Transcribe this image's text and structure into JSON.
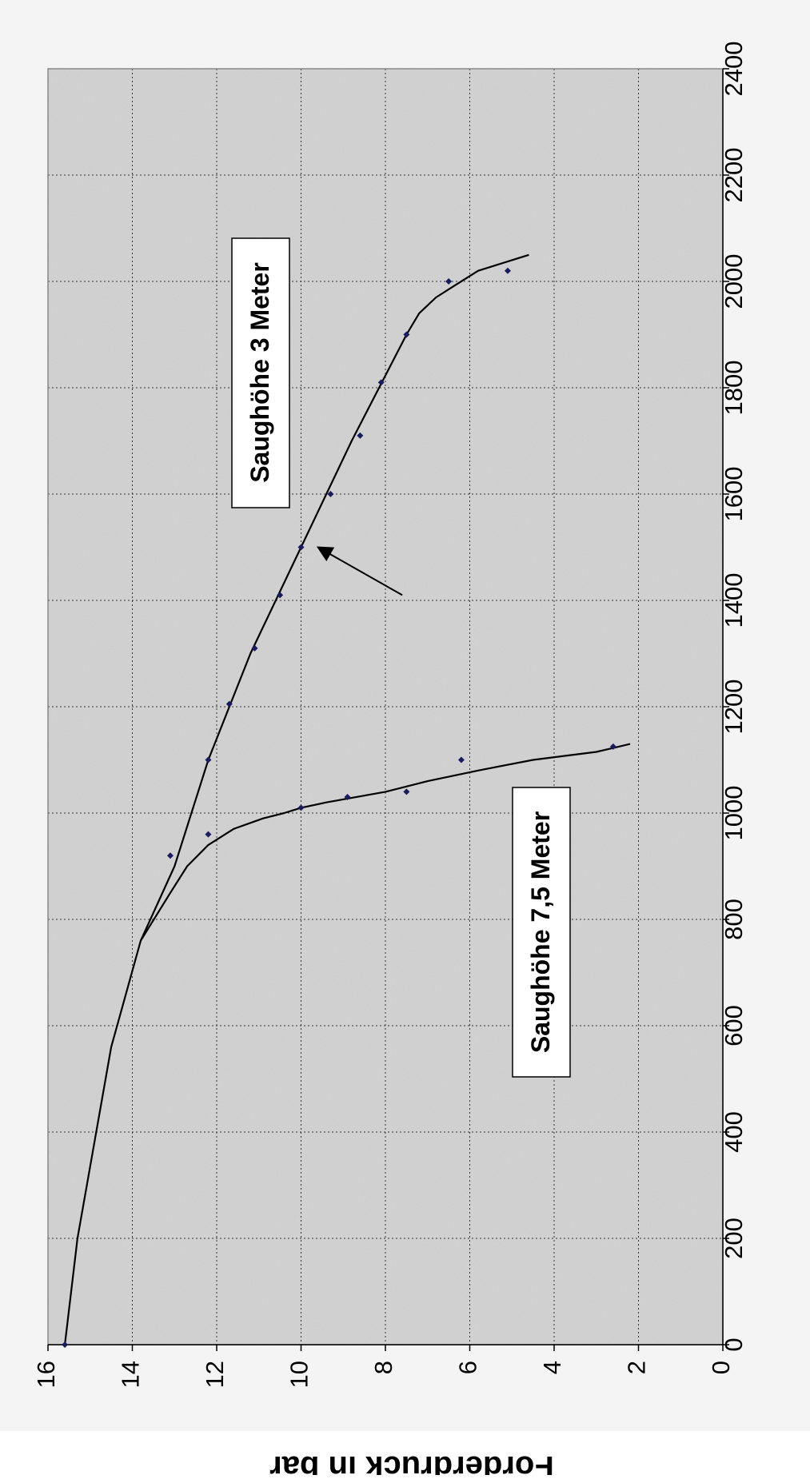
{
  "chart_data": {
    "type": "scatter",
    "rotation": "rotated 90 degrees clockwise",
    "ylabel": "Förderdruck in bar",
    "xlabel": "",
    "xlim": [
      0,
      2400
    ],
    "ylim": [
      0,
      16
    ],
    "x_ticks": [
      "0",
      "200",
      "400",
      "600",
      "800",
      "1000",
      "1200",
      "1400",
      "1600",
      "1800",
      "2000",
      "2200",
      "2400"
    ],
    "y_ticks": [
      "0",
      "2",
      "4",
      "6",
      "8",
      "10",
      "12",
      "14",
      "16"
    ],
    "grid": true,
    "background": "speckled grey texture",
    "series": [
      {
        "name": "Saughöhe 3 Meter",
        "points": [
          [
            0,
            15.6
          ],
          [
            920,
            13.1
          ],
          [
            1100,
            12.2
          ],
          [
            1205,
            11.7
          ],
          [
            1310,
            11.1
          ],
          [
            1410,
            10.5
          ],
          [
            1500,
            10.0
          ],
          [
            1600,
            9.3
          ],
          [
            1710,
            8.6
          ],
          [
            1810,
            8.1
          ],
          [
            1900,
            7.5
          ],
          [
            2000,
            6.5
          ],
          [
            2020,
            5.1
          ]
        ],
        "trend": [
          [
            0,
            15.6
          ],
          [
            200,
            15.3
          ],
          [
            380,
            14.9
          ],
          [
            560,
            14.5
          ],
          [
            760,
            13.8
          ],
          [
            900,
            13.0
          ],
          [
            1100,
            12.2
          ],
          [
            1300,
            11.2
          ],
          [
            1500,
            10.0
          ],
          [
            1700,
            8.8
          ],
          [
            1900,
            7.5
          ],
          [
            1940,
            7.2
          ],
          [
            1970,
            6.8
          ],
          [
            1990,
            6.4
          ],
          [
            2020,
            5.8
          ],
          [
            2050,
            4.6
          ]
        ],
        "color": "#000000"
      },
      {
        "name": "Saughöhe 7,5 Meter",
        "points": [
          [
            960,
            12.2
          ],
          [
            1010,
            10.0
          ],
          [
            1030,
            8.9
          ],
          [
            1040,
            7.5
          ],
          [
            1100,
            6.2
          ],
          [
            1125,
            2.6
          ]
        ],
        "trend": [
          [
            760,
            13.8
          ],
          [
            850,
            13.1
          ],
          [
            900,
            12.7
          ],
          [
            940,
            12.2
          ],
          [
            970,
            11.6
          ],
          [
            990,
            10.9
          ],
          [
            1000,
            10.4
          ],
          [
            1010,
            10.0
          ],
          [
            1020,
            9.4
          ],
          [
            1040,
            8.0
          ],
          [
            1060,
            7.0
          ],
          [
            1080,
            5.8
          ],
          [
            1100,
            4.5
          ],
          [
            1115,
            3.0
          ],
          [
            1130,
            2.2
          ]
        ],
        "color": "#000000"
      }
    ],
    "annotations": [
      {
        "text": "Saughöhe 3 Meter",
        "type": "boxed label"
      },
      {
        "text": "Saughöhe 7,5 Meter",
        "type": "boxed label"
      },
      {
        "type": "arrow",
        "from": [
          1410,
          7.6
        ],
        "to": [
          1500,
          9.6
        ]
      }
    ],
    "marker_color": "#1a1a5e"
  }
}
